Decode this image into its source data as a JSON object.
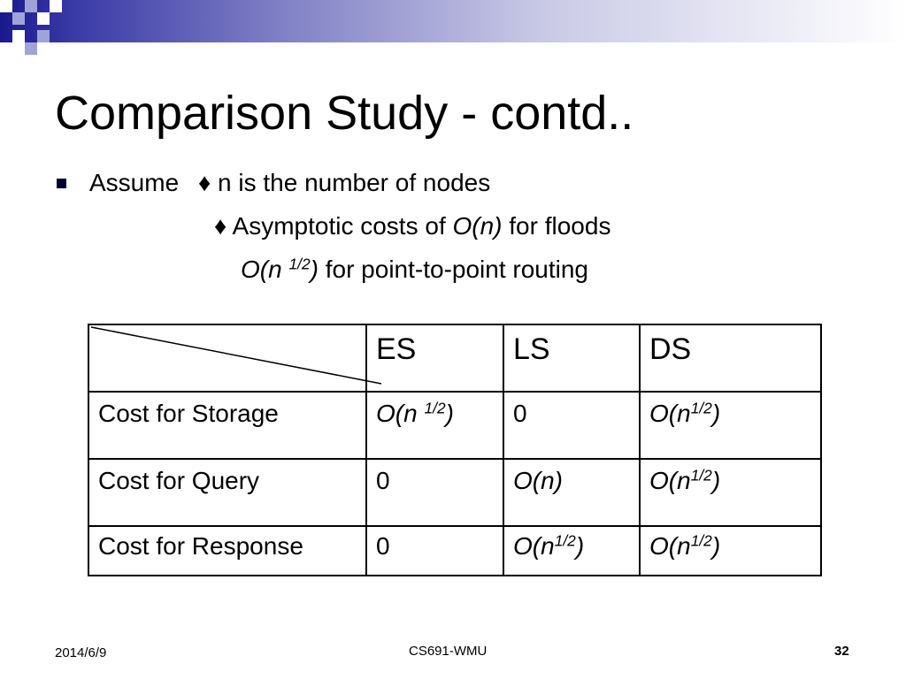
{
  "slide": {
    "title": "Comparison Study - contd..",
    "bullet": {
      "lead": "Assume",
      "line1": "n is the number of nodes",
      "line2_pre": "Asymptotic costs of ",
      "line2_it": "O(n)",
      "line2_post": " for floods",
      "line3_it_a": "O(n ",
      "line3_sup": "1/2",
      "line3_it_b": ")",
      "line3_post": " for point-to-point routing",
      "marker": "♦"
    },
    "table": {
      "headers": [
        "ES",
        "LS",
        "DS"
      ],
      "rows": [
        {
          "label": "Cost for Storage",
          "es": "O(n ",
          "es_sup": "1/2",
          "es_tail": ")",
          "ls": "0",
          "ds": "O(n",
          "ds_sup": "1/2",
          "ds_tail": ")"
        },
        {
          "label": "Cost for Query",
          "es": "0",
          "ls": "O(n)",
          "ds": "O(n",
          "ds_sup": "1/2",
          "ds_tail": ")"
        },
        {
          "label": "Cost for Response",
          "es": "0",
          "ls": "O(n",
          "ls_sup": "1/2",
          "ls_tail": ")",
          "ds": "O(n",
          "ds_sup": "1/2",
          "ds_tail": ")"
        }
      ]
    },
    "footer": {
      "date": "2014/6/9",
      "course": "CS691-WMU",
      "page": "32"
    },
    "colors": {
      "banner_dark": "#1a1a8c",
      "banner_light": "#c9c9e6",
      "square_light": "#9fa3d8"
    }
  }
}
